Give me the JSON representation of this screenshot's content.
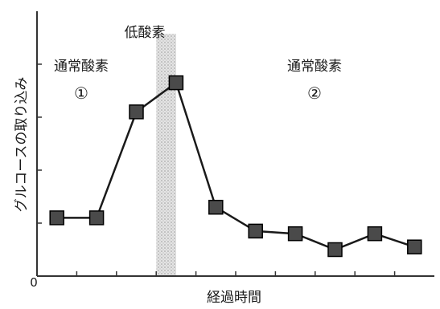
{
  "chart_data": {
    "type": "line",
    "title": "",
    "xlabel": "経過時間",
    "ylabel": "グルコースの取り込み",
    "y_origin_label": "0",
    "x": [
      1,
      2,
      3,
      4,
      5,
      6,
      7,
      8,
      9,
      10
    ],
    "series": [
      {
        "values": [
          2.2,
          2.2,
          6.2,
          7.3,
          2.6,
          1.7,
          1.6,
          1.0,
          1.6,
          1.1
        ],
        "marker": "square"
      }
    ],
    "ylim": [
      0,
      10
    ],
    "xlim": [
      0.5,
      10.5
    ],
    "grid": false,
    "shaded_region": {
      "x_start": 3.5,
      "x_end": 4.0,
      "label": "低酸素",
      "pattern": "stipple"
    },
    "annotations": [
      {
        "text": "通常酸素",
        "sub": "①"
      },
      {
        "text": "通常酸素",
        "sub": "②"
      }
    ],
    "colors": {
      "line": "#1a1a1a",
      "marker_fill": "#4a4a4a",
      "marker_stroke": "#000000",
      "shade": "#bdbdbd",
      "axis": "#333333"
    }
  }
}
